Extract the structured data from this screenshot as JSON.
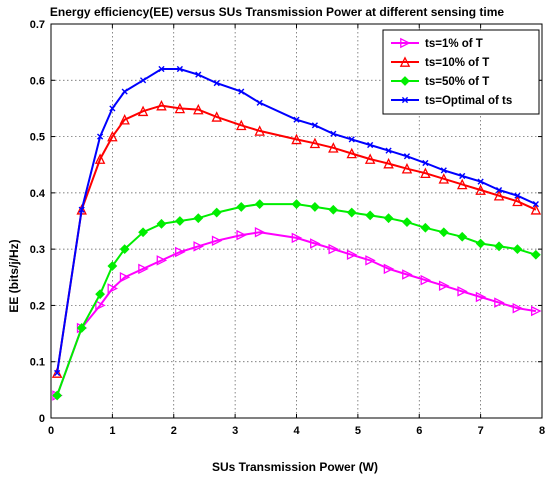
{
  "chart_data": {
    "type": "line",
    "title": "Energy efficiency(EE) versus SUs Transmission Power at different sensing time",
    "xlabel": "SUs Transmission Power (W)",
    "ylabel": "EE (bits/j/Hz)",
    "xlim": [
      0,
      8
    ],
    "ylim": [
      0,
      0.7
    ],
    "xticks": [
      0,
      1,
      2,
      3,
      4,
      5,
      6,
      7,
      8
    ],
    "yticks": [
      0,
      0.1,
      0.2,
      0.3,
      0.4,
      0.5,
      0.6,
      0.7
    ],
    "grid": true,
    "legend_position": "top-right",
    "series": [
      {
        "name": "ts=1% of T",
        "color": "#ff00ff",
        "marker": "triangle-right",
        "x": [
          0.1,
          0.5,
          0.8,
          1.0,
          1.2,
          1.5,
          1.8,
          2.1,
          2.4,
          2.7,
          3.1,
          3.4,
          4.0,
          4.3,
          4.6,
          4.9,
          5.2,
          5.5,
          5.8,
          6.1,
          6.4,
          6.7,
          7.0,
          7.3,
          7.6,
          7.9
        ],
        "y": [
          0.04,
          0.16,
          0.2,
          0.23,
          0.25,
          0.265,
          0.28,
          0.295,
          0.305,
          0.315,
          0.325,
          0.33,
          0.32,
          0.31,
          0.3,
          0.29,
          0.28,
          0.265,
          0.255,
          0.245,
          0.235,
          0.225,
          0.215,
          0.205,
          0.195,
          0.19
        ]
      },
      {
        "name": "ts=10% of T",
        "color": "#ff0000",
        "marker": "triangle-up",
        "x": [
          0.1,
          0.5,
          0.8,
          1.0,
          1.2,
          1.5,
          1.8,
          2.1,
          2.4,
          2.7,
          3.1,
          3.4,
          4.0,
          4.3,
          4.6,
          4.9,
          5.2,
          5.5,
          5.8,
          6.1,
          6.4,
          6.7,
          7.0,
          7.3,
          7.6,
          7.9
        ],
        "y": [
          0.08,
          0.37,
          0.46,
          0.5,
          0.53,
          0.545,
          0.555,
          0.55,
          0.548,
          0.535,
          0.52,
          0.51,
          0.495,
          0.488,
          0.48,
          0.47,
          0.46,
          0.452,
          0.443,
          0.435,
          0.425,
          0.415,
          0.405,
          0.395,
          0.385,
          0.37
        ]
      },
      {
        "name": "ts=50% of T",
        "color": "#00ee00",
        "marker": "diamond",
        "x": [
          0.1,
          0.5,
          0.8,
          1.0,
          1.2,
          1.5,
          1.8,
          2.1,
          2.4,
          2.7,
          3.1,
          3.4,
          4.0,
          4.3,
          4.6,
          4.9,
          5.2,
          5.5,
          5.8,
          6.1,
          6.4,
          6.7,
          7.0,
          7.3,
          7.6,
          7.9
        ],
        "y": [
          0.04,
          0.16,
          0.22,
          0.27,
          0.3,
          0.33,
          0.345,
          0.35,
          0.355,
          0.365,
          0.375,
          0.38,
          0.38,
          0.375,
          0.37,
          0.365,
          0.36,
          0.355,
          0.348,
          0.338,
          0.33,
          0.322,
          0.31,
          0.305,
          0.3,
          0.29
        ]
      },
      {
        "name": "ts=Optimal of ts",
        "color": "#0000ff",
        "marker": "x",
        "x": [
          0.1,
          0.5,
          0.8,
          1.0,
          1.2,
          1.5,
          1.8,
          2.1,
          2.4,
          2.7,
          3.1,
          3.4,
          4.0,
          4.3,
          4.6,
          4.9,
          5.2,
          5.5,
          5.8,
          6.1,
          6.4,
          6.7,
          7.0,
          7.3,
          7.6,
          7.9
        ],
        "y": [
          0.08,
          0.37,
          0.5,
          0.55,
          0.58,
          0.6,
          0.62,
          0.62,
          0.61,
          0.595,
          0.58,
          0.56,
          0.53,
          0.52,
          0.505,
          0.495,
          0.485,
          0.475,
          0.465,
          0.453,
          0.44,
          0.43,
          0.42,
          0.405,
          0.395,
          0.38
        ]
      }
    ]
  }
}
